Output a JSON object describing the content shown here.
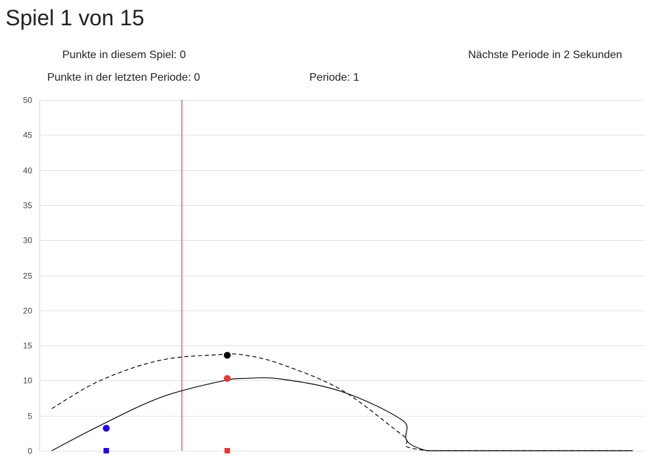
{
  "game": {
    "title": "Spiel 1 von 15",
    "points_this_game": "Punkte in diesem Spiel: 0",
    "next_period": "Nächste Periode in 2 Sekunden",
    "points_last_period": "Punkte in der letzten Periode: 0",
    "period": "Periode: 1"
  },
  "chart_data": {
    "type": "line",
    "xlim": [
      0,
      100
    ],
    "ylim": [
      0,
      50
    ],
    "y_ticks": [
      0,
      5,
      10,
      15,
      20,
      25,
      30,
      35,
      40,
      45,
      50
    ],
    "grid": true,
    "colors": {
      "grid": "#e0e0e0",
      "curve": "#000000",
      "marker_line": "#e06666",
      "blue": "#2200ee",
      "red": "#e53935",
      "black": "#000000"
    },
    "series": [
      {
        "style": "solid",
        "points": [
          [
            2,
            0
          ],
          [
            10,
            3.6
          ],
          [
            20,
            7.6
          ],
          [
            30,
            9.9
          ],
          [
            34,
            10.3
          ],
          [
            40,
            10.2
          ],
          [
            50,
            8.4
          ],
          [
            60,
            4.3
          ],
          [
            64,
            0
          ],
          [
            98,
            0
          ]
        ]
      },
      {
        "style": "dashed",
        "points": [
          [
            2,
            6
          ],
          [
            10,
            10
          ],
          [
            20,
            12.9
          ],
          [
            30,
            13.7
          ],
          [
            34,
            13.6
          ],
          [
            40,
            12.3
          ],
          [
            50,
            8.6
          ],
          [
            60,
            2.2
          ],
          [
            64,
            0
          ],
          [
            98,
            0
          ]
        ]
      }
    ],
    "vertical_line_x": 23.5,
    "markers": [
      {
        "shape": "circle",
        "color": "blue",
        "x": 11,
        "y": 3.2
      },
      {
        "shape": "square",
        "color": "blue",
        "x": 11,
        "y": 0
      },
      {
        "shape": "circle",
        "color": "red",
        "x": 31,
        "y": 10.3
      },
      {
        "shape": "circle",
        "color": "black",
        "x": 31,
        "y": 13.6
      },
      {
        "shape": "square",
        "color": "red",
        "x": 31,
        "y": 0
      }
    ]
  }
}
